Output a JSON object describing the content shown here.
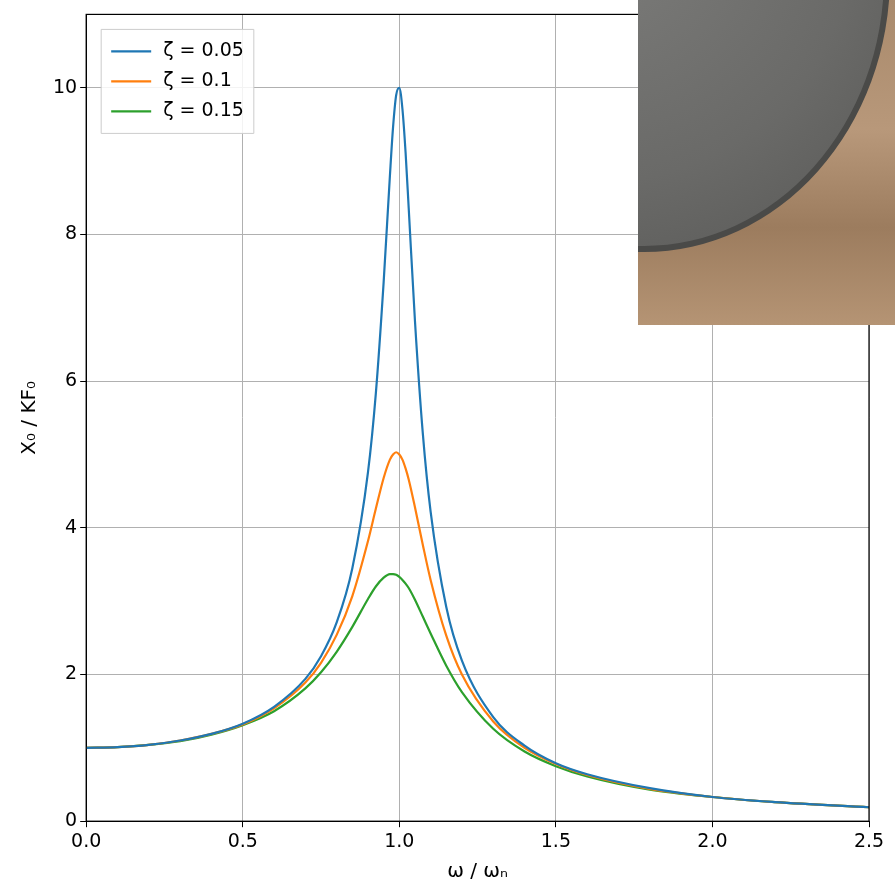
{
  "chart_data": {
    "type": "line",
    "x_label": "ω / ωₙ",
    "y_label": "X₀ / KF₀",
    "x": [
      0,
      0.1,
      0.2,
      0.3,
      0.4,
      0.5,
      0.6,
      0.7,
      0.75,
      0.8,
      0.85,
      0.9,
      0.925,
      0.95,
      0.97,
      0.98,
      0.99,
      1.0,
      1.01,
      1.02,
      1.03,
      1.05,
      1.075,
      1.1,
      1.15,
      1.2,
      1.3,
      1.4,
      1.5,
      1.6,
      1.8,
      2.0,
      2.2,
      2.5
    ],
    "series": [
      {
        "name": "ζ = 0.05",
        "color": "#1f77b4",
        "values": [
          1.0,
          1.01,
          1.04,
          1.1,
          1.19,
          1.33,
          1.56,
          1.94,
          2.25,
          2.71,
          3.45,
          4.76,
          5.83,
          7.35,
          8.8,
          9.46,
          9.9,
          10.0,
          9.71,
          9.12,
          8.36,
          6.82,
          5.29,
          4.22,
          2.92,
          2.19,
          1.42,
          1.03,
          0.79,
          0.64,
          0.45,
          0.33,
          0.26,
          0.19
        ]
      },
      {
        "name": "ζ = 0.1",
        "color": "#ff7f0e",
        "values": [
          1.0,
          1.01,
          1.04,
          1.1,
          1.19,
          1.32,
          1.54,
          1.89,
          2.16,
          2.54,
          3.07,
          3.82,
          4.26,
          4.68,
          4.93,
          5.0,
          5.03,
          5.0,
          4.93,
          4.81,
          4.66,
          4.28,
          3.77,
          3.29,
          2.53,
          2.0,
          1.36,
          1.0,
          0.78,
          0.63,
          0.44,
          0.33,
          0.26,
          0.19
        ]
      },
      {
        "name": "ζ = 0.15",
        "color": "#2ca02c",
        "values": [
          1.0,
          1.01,
          1.04,
          1.09,
          1.18,
          1.31,
          1.5,
          1.81,
          2.03,
          2.31,
          2.65,
          3.03,
          3.2,
          3.32,
          3.37,
          3.37,
          3.36,
          3.33,
          3.29,
          3.24,
          3.18,
          3.02,
          2.79,
          2.56,
          2.12,
          1.76,
          1.26,
          0.95,
          0.75,
          0.61,
          0.43,
          0.33,
          0.26,
          0.19
        ]
      }
    ],
    "xlim": [
      0,
      2.5
    ],
    "xticks": [
      {
        "value": 0,
        "label": "0.0"
      },
      0.5,
      {
        "value": 1,
        "label": "1.0"
      },
      1.5,
      {
        "value": 2,
        "label": "2.0"
      },
      2.5
    ],
    "ylim": [
      0,
      11
    ],
    "yticks": [
      0,
      2,
      4,
      6,
      8,
      10
    ],
    "grid": true,
    "legend": "upper left"
  }
}
